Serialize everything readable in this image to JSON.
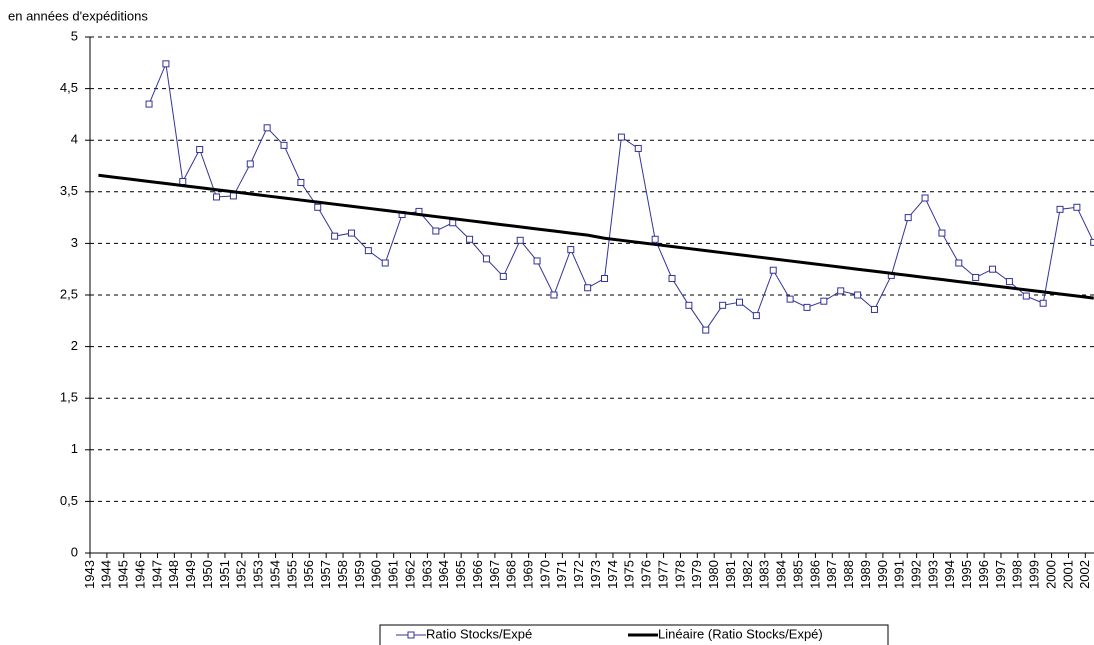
{
  "chart_data": {
    "type": "line",
    "y_axis_label": "en années d'expéditions",
    "categories": [
      "1943",
      "1944",
      "1945",
      "1946",
      "1947",
      "1948",
      "1949",
      "1950",
      "1951",
      "1952",
      "1953",
      "1954",
      "1955",
      "1956",
      "1957",
      "1958",
      "1959",
      "1960",
      "1961",
      "1962",
      "1963",
      "1964",
      "1965",
      "1966",
      "1967",
      "1968",
      "1969",
      "1970",
      "1971",
      "1972",
      "1973",
      "1974",
      "1975",
      "1976",
      "1977",
      "1978",
      "1979",
      "1980",
      "1981",
      "1982",
      "1983",
      "1984",
      "1985",
      "1986",
      "1987",
      "1988",
      "1989",
      "1990",
      "1991",
      "1992",
      "1993",
      "1994",
      "1995",
      "1996",
      "1997",
      "1998",
      "1999",
      "2000",
      "2001",
      "2002"
    ],
    "series": [
      {
        "name": "Ratio Stocks/Expé",
        "color": "#333399",
        "marker": "square",
        "values": [
          null,
          null,
          null,
          4.35,
          4.74,
          3.6,
          3.91,
          3.45,
          3.46,
          3.77,
          4.12,
          3.95,
          3.59,
          3.35,
          3.07,
          3.1,
          2.93,
          2.81,
          3.28,
          3.31,
          3.12,
          3.2,
          3.04,
          2.85,
          2.68,
          3.03,
          2.83,
          2.5,
          2.94,
          2.57,
          2.66,
          4.03,
          3.92,
          3.04,
          2.66,
          2.4,
          2.16,
          2.4,
          2.43,
          2.3,
          2.74,
          2.46,
          2.38,
          2.44,
          2.54,
          2.5,
          2.36,
          2.69,
          3.25,
          3.44,
          3.1,
          2.81,
          2.67,
          2.75,
          2.63,
          2.49,
          2.42,
          3.33,
          3.35,
          3.01
        ]
      },
      {
        "name": "Linéaire (Ratio Stocks/Expé)",
        "color": "#000000",
        "marker": "none",
        "values": [
          3.66,
          3.64,
          3.62,
          3.6,
          3.58,
          3.56,
          3.54,
          3.52,
          3.5,
          3.48,
          3.46,
          3.44,
          3.42,
          3.4,
          3.38,
          3.36,
          3.34,
          3.32,
          3.3,
          3.28,
          3.26,
          3.24,
          3.22,
          3.2,
          3.18,
          3.16,
          3.14,
          3.12,
          3.1,
          3.08,
          3.05,
          3.03,
          3.01,
          2.99,
          2.97,
          2.95,
          2.93,
          2.91,
          2.89,
          2.87,
          2.85,
          2.83,
          2.81,
          2.79,
          2.77,
          2.75,
          2.73,
          2.71,
          2.69,
          2.67,
          2.65,
          2.63,
          2.61,
          2.59,
          2.57,
          2.55,
          2.53,
          2.51,
          2.49,
          2.47
        ]
      }
    ],
    "ylim": [
      0,
      5
    ],
    "yticks": [
      0,
      {
        "value": 0.5,
        "label": "0,5"
      },
      1,
      {
        "value": 1.5,
        "label": "1,5"
      },
      2,
      {
        "value": 2.5,
        "label": "2,5"
      },
      3,
      {
        "value": 3.5,
        "label": "3,5"
      },
      4,
      {
        "value": 4.5,
        "label": "4,5"
      },
      5
    ],
    "grid": true,
    "legend": "bottom"
  }
}
